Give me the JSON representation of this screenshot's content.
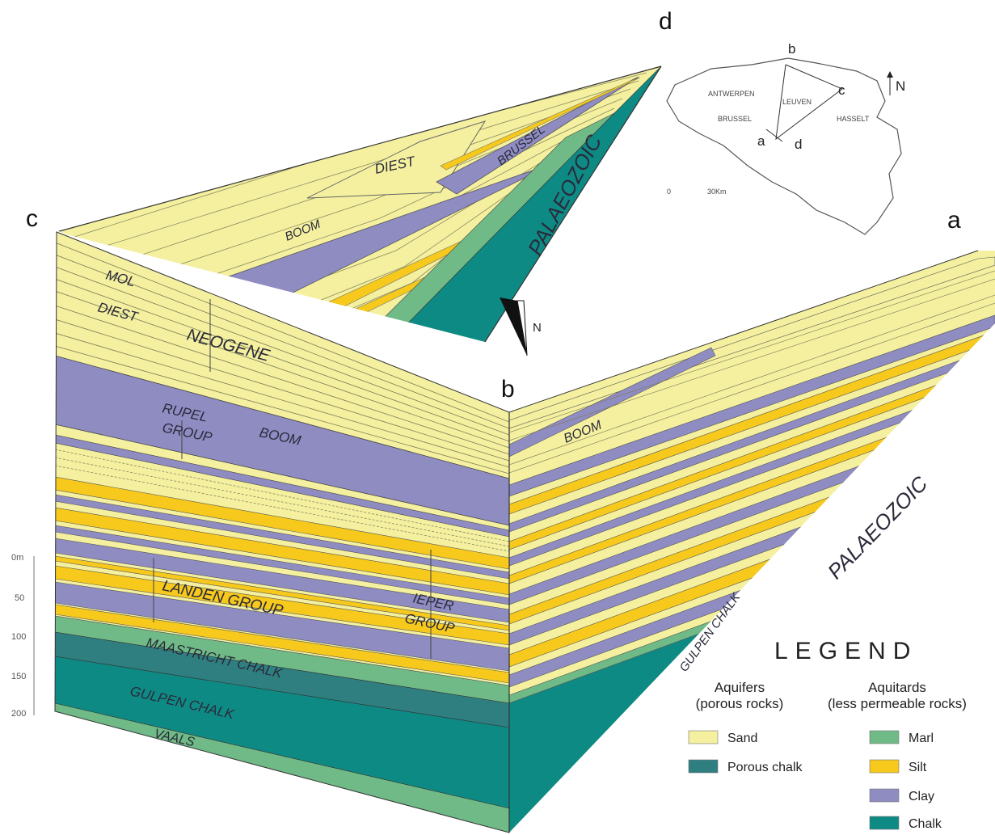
{
  "corners": {
    "a": "a",
    "b": "b",
    "c": "c",
    "d": "d"
  },
  "north": "N",
  "units": {
    "mol": "MOL",
    "diest": "DIEST",
    "neogene": "NEOGENE",
    "rupel": "RUPEL",
    "group": "GROUP",
    "boom": "BOOM",
    "landen_group": "LANDEN GROUP",
    "ieper": "IEPER",
    "maastricht_chalk": "MAASTRICHT CHALK",
    "gulpen_chalk": "GULPEN CHALK",
    "vaals": "VAALS",
    "palaeozoic": "PALAEOZOIC",
    "brussel": "BRUSSEL",
    "gulpen_chalk_side": "GULPEN CHALK"
  },
  "depth_scale": [
    "0m",
    "50",
    "100",
    "150",
    "200"
  ],
  "inset_map": {
    "cities": [
      "ANTWERPEN",
      "LEUVEN",
      "BRUSSEL",
      "HASSELT"
    ],
    "points": [
      "a",
      "b",
      "c",
      "d"
    ],
    "north": "N",
    "scale": [
      "0",
      "30Km"
    ]
  },
  "legend": {
    "title": "LEGEND",
    "aquifers_head": [
      "Aquifers",
      "(porous rocks)"
    ],
    "aquitards_head": [
      "Aquitards",
      "(less permeable rocks)"
    ],
    "aquifers": [
      {
        "label": "Sand",
        "color": "#f4f0a0"
      },
      {
        "label": "Porous chalk",
        "color": "#2f7f80"
      }
    ],
    "aquitards": [
      {
        "label": "Marl",
        "color": "#6fba86"
      },
      {
        "label": "Silt",
        "color": "#f6c91c"
      },
      {
        "label": "Clay",
        "color": "#8f8cc2"
      },
      {
        "label": "Chalk",
        "color": "#0e8a84"
      }
    ]
  },
  "colors": {
    "sand": "#f4f0a0",
    "silt": "#f6c91c",
    "clay": "#8f8cc2",
    "marl": "#6fba86",
    "porous_chalk": "#2f7f80",
    "chalk": "#0e8a84"
  }
}
